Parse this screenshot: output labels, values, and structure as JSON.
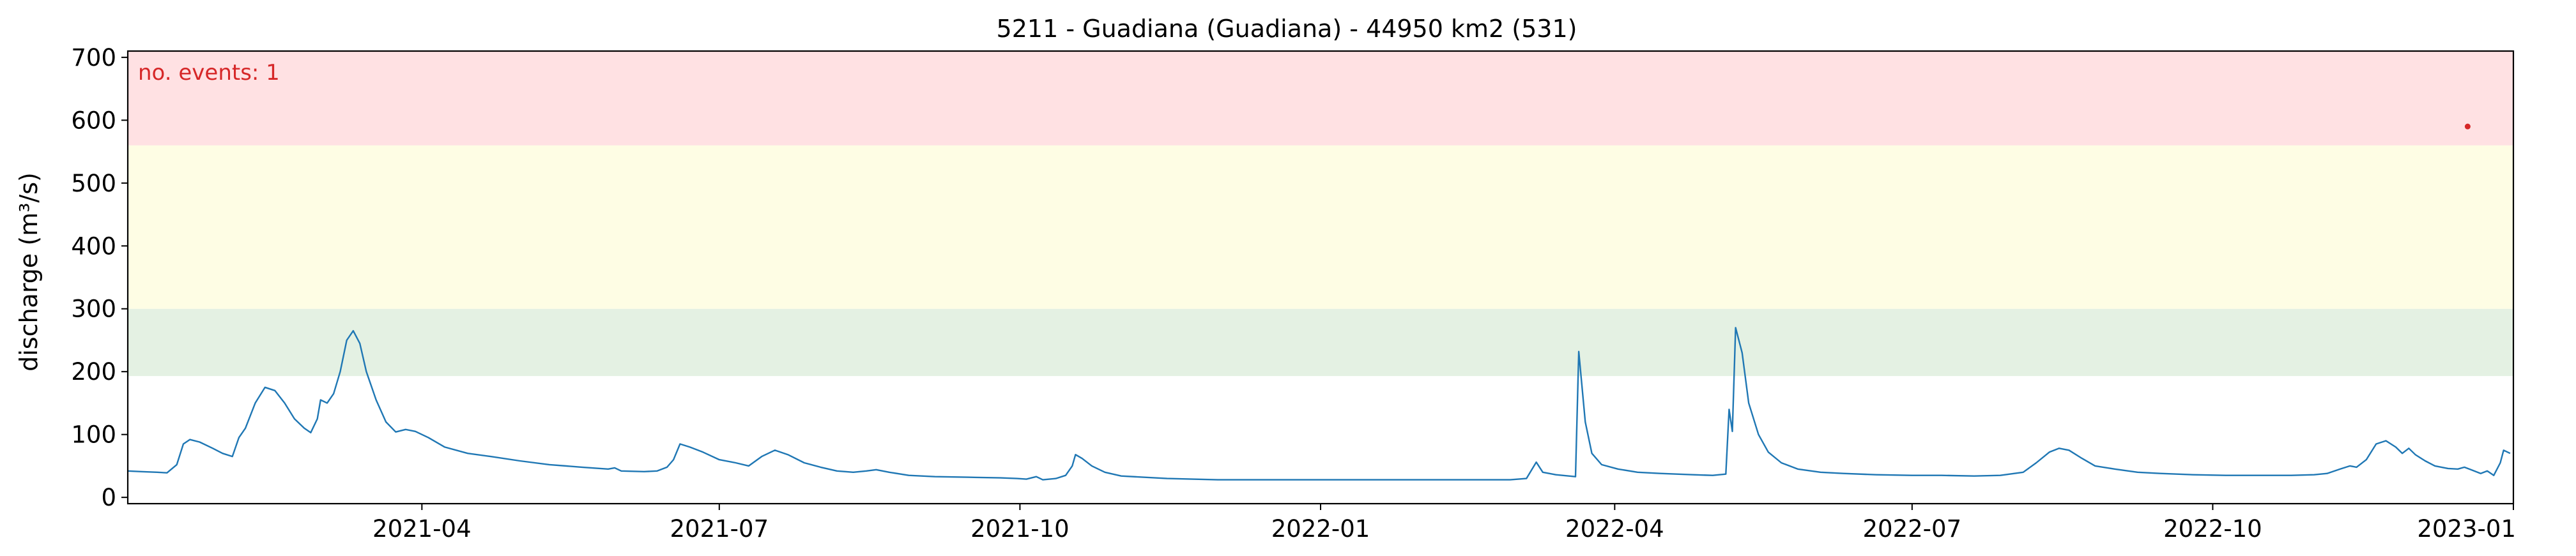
{
  "chart_data": {
    "type": "line",
    "title": "5211 - Guadiana (Guadiana) - 44950 km2 (531)",
    "xlabel": "",
    "ylabel": "discharge (m³/s)",
    "xlim": [
      "2021-01-01",
      "2023-01-01"
    ],
    "ylim": [
      -10,
      710
    ],
    "yticks": [
      0,
      100,
      200,
      300,
      400,
      500,
      600,
      700
    ],
    "xticks": [
      "2021-04",
      "2021-07",
      "2021-10",
      "2022-01",
      "2022-04",
      "2022-07",
      "2022-10",
      "2023-01"
    ],
    "grid": false,
    "legend": "none",
    "bands": [
      {
        "name": "green",
        "from": 193,
        "to": 300,
        "color": "#e4f1e3"
      },
      {
        "name": "yellow",
        "from": 300,
        "to": 560,
        "color": "#fefde4"
      },
      {
        "name": "red",
        "from": 560,
        "to": 710,
        "color": "#ffe1e3"
      }
    ],
    "annotation": {
      "text": "no. events: 1",
      "color": "#d62728"
    },
    "event_points": [
      {
        "x": "2022-12-18",
        "y": 590
      }
    ],
    "series": [
      {
        "color": "#1f77b4",
        "points": [
          [
            "2021-01-01",
            42
          ],
          [
            "2021-01-05",
            41
          ],
          [
            "2021-01-10",
            40
          ],
          [
            "2021-01-13",
            39
          ],
          [
            "2021-01-16",
            52
          ],
          [
            "2021-01-18",
            85
          ],
          [
            "2021-01-20",
            92
          ],
          [
            "2021-01-23",
            88
          ],
          [
            "2021-01-27",
            78
          ],
          [
            "2021-01-30",
            70
          ],
          [
            "2021-02-02",
            65
          ],
          [
            "2021-02-04",
            95
          ],
          [
            "2021-02-06",
            110
          ],
          [
            "2021-02-09",
            150
          ],
          [
            "2021-02-12",
            175
          ],
          [
            "2021-02-15",
            170
          ],
          [
            "2021-02-18",
            150
          ],
          [
            "2021-02-21",
            125
          ],
          [
            "2021-02-24",
            110
          ],
          [
            "2021-02-26",
            103
          ],
          [
            "2021-02-28",
            125
          ],
          [
            "2021-03-01",
            155
          ],
          [
            "2021-03-03",
            150
          ],
          [
            "2021-03-05",
            165
          ],
          [
            "2021-03-07",
            200
          ],
          [
            "2021-03-09",
            250
          ],
          [
            "2021-03-11",
            265
          ],
          [
            "2021-03-13",
            245
          ],
          [
            "2021-03-15",
            200
          ],
          [
            "2021-03-18",
            155
          ],
          [
            "2021-03-21",
            120
          ],
          [
            "2021-03-24",
            104
          ],
          [
            "2021-03-27",
            108
          ],
          [
            "2021-03-30",
            105
          ],
          [
            "2021-04-03",
            95
          ],
          [
            "2021-04-08",
            80
          ],
          [
            "2021-04-15",
            70
          ],
          [
            "2021-04-22",
            65
          ],
          [
            "2021-05-01",
            58
          ],
          [
            "2021-05-10",
            52
          ],
          [
            "2021-05-20",
            48
          ],
          [
            "2021-05-28",
            45
          ],
          [
            "2021-05-30",
            47
          ],
          [
            "2021-06-01",
            42
          ],
          [
            "2021-06-08",
            41
          ],
          [
            "2021-06-12",
            42
          ],
          [
            "2021-06-15",
            48
          ],
          [
            "2021-06-17",
            60
          ],
          [
            "2021-06-19",
            85
          ],
          [
            "2021-06-22",
            80
          ],
          [
            "2021-06-26",
            72
          ],
          [
            "2021-07-01",
            60
          ],
          [
            "2021-07-06",
            55
          ],
          [
            "2021-07-10",
            50
          ],
          [
            "2021-07-14",
            65
          ],
          [
            "2021-07-18",
            75
          ],
          [
            "2021-07-22",
            68
          ],
          [
            "2021-07-27",
            55
          ],
          [
            "2021-08-01",
            48
          ],
          [
            "2021-08-06",
            42
          ],
          [
            "2021-08-11",
            40
          ],
          [
            "2021-08-15",
            42
          ],
          [
            "2021-08-18",
            44
          ],
          [
            "2021-08-22",
            40
          ],
          [
            "2021-08-28",
            35
          ],
          [
            "2021-09-05",
            33
          ],
          [
            "2021-09-15",
            32
          ],
          [
            "2021-09-25",
            31
          ],
          [
            "2021-09-30",
            30
          ],
          [
            "2021-10-03",
            29
          ],
          [
            "2021-10-06",
            33
          ],
          [
            "2021-10-08",
            28
          ],
          [
            "2021-10-12",
            30
          ],
          [
            "2021-10-15",
            35
          ],
          [
            "2021-10-17",
            50
          ],
          [
            "2021-10-18",
            68
          ],
          [
            "2021-10-20",
            62
          ],
          [
            "2021-10-23",
            50
          ],
          [
            "2021-10-27",
            40
          ],
          [
            "2021-11-01",
            34
          ],
          [
            "2021-11-15",
            30
          ],
          [
            "2021-12-01",
            28
          ],
          [
            "2021-12-15",
            28
          ],
          [
            "2021-12-31",
            28
          ],
          [
            "2022-01-15",
            28
          ],
          [
            "2022-02-01",
            28
          ],
          [
            "2022-02-15",
            28
          ],
          [
            "2022-02-28",
            28
          ],
          [
            "2022-03-05",
            30
          ],
          [
            "2022-03-08",
            56
          ],
          [
            "2022-03-10",
            40
          ],
          [
            "2022-03-14",
            36
          ],
          [
            "2022-03-18",
            34
          ],
          [
            "2022-03-20",
            33
          ],
          [
            "2022-03-21",
            232
          ],
          [
            "2022-03-23",
            120
          ],
          [
            "2022-03-25",
            70
          ],
          [
            "2022-03-28",
            52
          ],
          [
            "2022-04-02",
            45
          ],
          [
            "2022-04-08",
            40
          ],
          [
            "2022-04-15",
            38
          ],
          [
            "2022-04-25",
            36
          ],
          [
            "2022-05-01",
            35
          ],
          [
            "2022-05-05",
            37
          ],
          [
            "2022-05-06",
            140
          ],
          [
            "2022-05-07",
            105
          ],
          [
            "2022-05-08",
            270
          ],
          [
            "2022-05-10",
            230
          ],
          [
            "2022-05-12",
            150
          ],
          [
            "2022-05-15",
            100
          ],
          [
            "2022-05-18",
            72
          ],
          [
            "2022-05-22",
            55
          ],
          [
            "2022-05-27",
            45
          ],
          [
            "2022-06-03",
            40
          ],
          [
            "2022-06-10",
            38
          ],
          [
            "2022-06-20",
            36
          ],
          [
            "2022-07-01",
            35
          ],
          [
            "2022-07-10",
            35
          ],
          [
            "2022-07-20",
            34
          ],
          [
            "2022-07-28",
            35
          ],
          [
            "2022-08-04",
            40
          ],
          [
            "2022-08-08",
            55
          ],
          [
            "2022-08-12",
            72
          ],
          [
            "2022-08-15",
            78
          ],
          [
            "2022-08-18",
            75
          ],
          [
            "2022-08-22",
            62
          ],
          [
            "2022-08-26",
            50
          ],
          [
            "2022-09-01",
            45
          ],
          [
            "2022-09-08",
            40
          ],
          [
            "2022-09-15",
            38
          ],
          [
            "2022-09-25",
            36
          ],
          [
            "2022-10-05",
            35
          ],
          [
            "2022-10-15",
            35
          ],
          [
            "2022-10-25",
            35
          ],
          [
            "2022-11-01",
            36
          ],
          [
            "2022-11-05",
            38
          ],
          [
            "2022-11-09",
            45
          ],
          [
            "2022-11-12",
            50
          ],
          [
            "2022-11-14",
            48
          ],
          [
            "2022-11-17",
            60
          ],
          [
            "2022-11-20",
            85
          ],
          [
            "2022-11-23",
            90
          ],
          [
            "2022-11-26",
            80
          ],
          [
            "2022-11-28",
            70
          ],
          [
            "2022-11-30",
            78
          ],
          [
            "2022-12-02",
            68
          ],
          [
            "2022-12-05",
            58
          ],
          [
            "2022-12-08",
            50
          ],
          [
            "2022-12-12",
            46
          ],
          [
            "2022-12-15",
            45
          ],
          [
            "2022-12-17",
            48
          ],
          [
            "2022-12-19",
            44
          ],
          [
            "2022-12-22",
            38
          ],
          [
            "2022-12-24",
            42
          ],
          [
            "2022-12-26",
            35
          ],
          [
            "2022-12-28",
            55
          ],
          [
            "2022-12-29",
            75
          ],
          [
            "2022-12-31",
            70
          ]
        ]
      }
    ]
  }
}
